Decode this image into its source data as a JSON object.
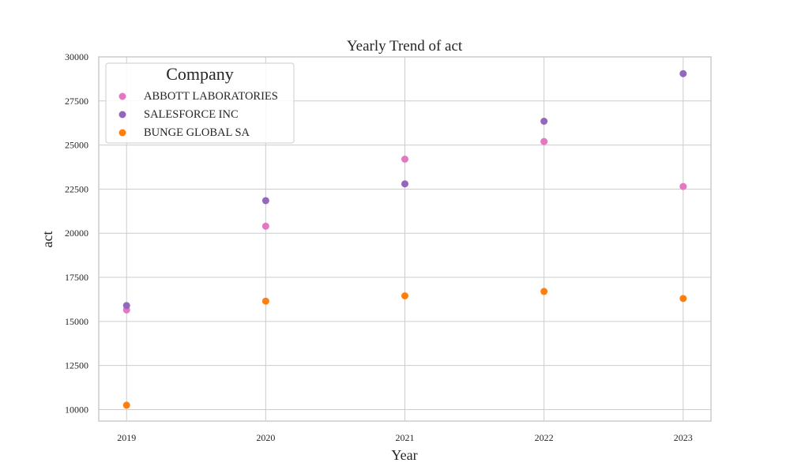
{
  "chart_data": {
    "type": "scatter",
    "title": "Yearly Trend of act",
    "xlabel": "Year",
    "ylabel": "act",
    "x": [
      2019,
      2020,
      2021,
      2022,
      2023
    ],
    "xlim": [
      2018.8,
      2023.2
    ],
    "ylim": [
      9350,
      30000
    ],
    "yticks": [
      10000,
      12500,
      15000,
      17500,
      20000,
      22500,
      25000,
      27500,
      30000
    ],
    "grid": true,
    "legend": {
      "title": "Company",
      "placement": "top-left"
    },
    "series": [
      {
        "name": "ABBOTT LABORATORIES",
        "color": "#e377c2",
        "values": [
          15650,
          20400,
          24200,
          25200,
          22650
        ]
      },
      {
        "name": "SALESFORCE INC",
        "color": "#9467bd",
        "values": [
          15900,
          21850,
          22800,
          26350,
          29050
        ]
      },
      {
        "name": "BUNGE GLOBAL SA",
        "color": "#ff7f0e",
        "values": [
          10250,
          16150,
          16450,
          16700,
          16300
        ]
      }
    ]
  }
}
